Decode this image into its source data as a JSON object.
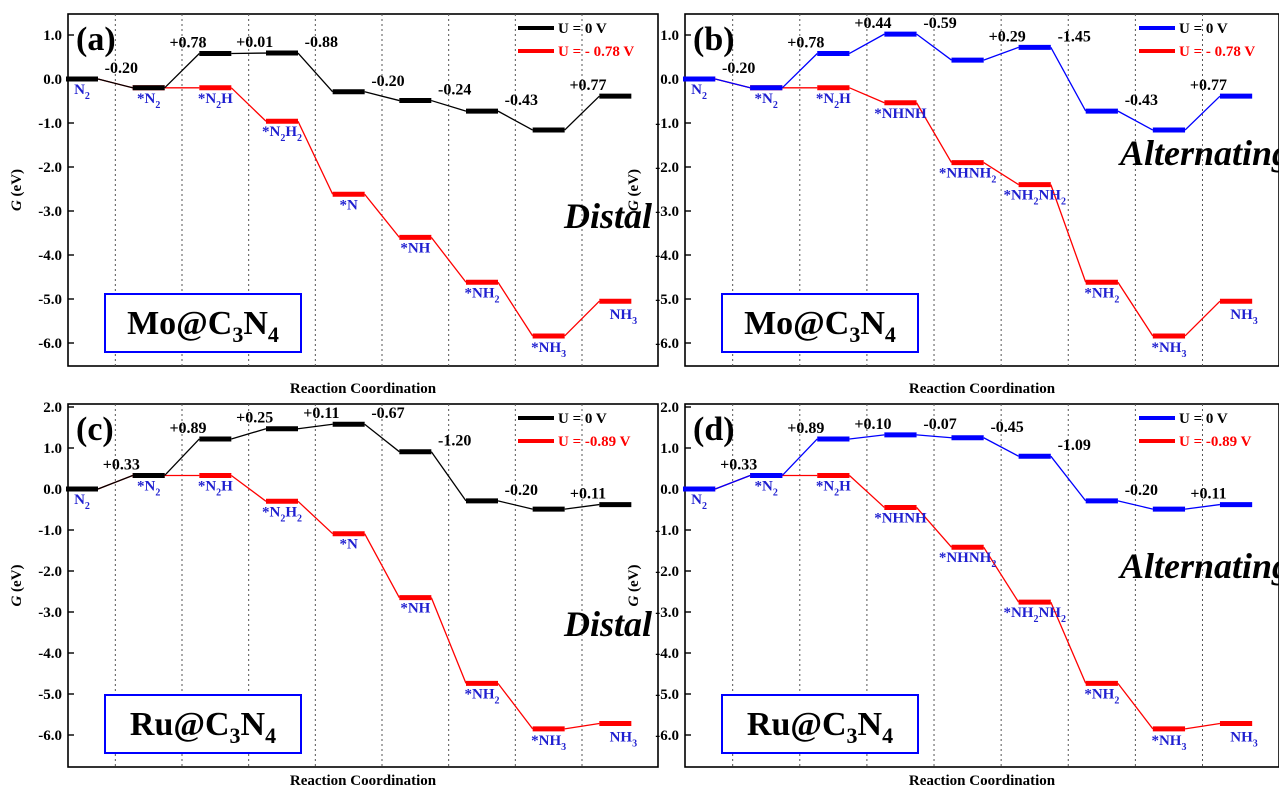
{
  "colors": {
    "black": "#000000",
    "red": "#ff0000",
    "blue": "#0000ff",
    "label": "#1f1fd0",
    "grid": "#555555"
  },
  "chart_data": [
    {
      "type": "line",
      "panel_label": "(a)",
      "catalyst": {
        "prefix": "Mo@C",
        "sub1": "3",
        "mid": "N",
        "sub2": "4"
      },
      "mechanism": "Distal",
      "xlabel": "Reaction Coordination",
      "ylabel": "G (eV)",
      "ylim": [
        -6.5,
        1.2
      ],
      "yticks": [
        "1.0",
        "0.0",
        "-1.0",
        "-2.0",
        "-3.0",
        "-4.0",
        "-5.0",
        "-6.0"
      ],
      "grid": "vertical dotted separators",
      "legend_position": "top-right",
      "n_steps": 9,
      "series": [
        {
          "name": "U = 0 V",
          "color": "black",
          "values": [
            0.0,
            -0.2,
            0.58,
            0.59,
            -0.29,
            -0.49,
            -0.73,
            -1.16,
            -0.39
          ]
        },
        {
          "name": "U = - 0.78 V",
          "color": "red",
          "values": [
            0.0,
            -0.2,
            -0.2,
            -0.96,
            -2.62,
            -3.6,
            -4.62,
            -5.84,
            -5.05
          ]
        }
      ],
      "state_labels": [
        {
          "step": 0,
          "main": "N",
          "sub": "2"
        },
        {
          "step": 1,
          "main": "*N",
          "sub": "2"
        },
        {
          "step": 2,
          "main": "*N",
          "sub": "2",
          "tail": "H"
        },
        {
          "step": 3,
          "main": "*N",
          "sub": "2",
          "tail": "H",
          "sub2": "2"
        },
        {
          "step": 4,
          "main": "*N"
        },
        {
          "step": 5,
          "main": "*NH"
        },
        {
          "step": 6,
          "main": "*NH",
          "sub": "2"
        },
        {
          "step": 7,
          "main": "*NH",
          "sub": "3"
        },
        {
          "step": 8,
          "main": "NH",
          "sub": "3"
        }
      ],
      "energy_labels": [
        {
          "step": 1,
          "text": "-0.20"
        },
        {
          "step": 2,
          "text": "+0.78"
        },
        {
          "step": 3,
          "text": "+0.01"
        },
        {
          "step": 4,
          "text": "-0.88"
        },
        {
          "step": 5,
          "text": "-0.20"
        },
        {
          "step": 6,
          "text": "-0.24"
        },
        {
          "step": 7,
          "text": "-0.43"
        },
        {
          "step": 8,
          "text": "+0.77"
        }
      ]
    },
    {
      "type": "line",
      "panel_label": "(b)",
      "catalyst": {
        "prefix": "Mo@C",
        "sub1": "3",
        "mid": "N",
        "sub2": "4"
      },
      "mechanism": "Alternating",
      "xlabel": "Reaction Coordination",
      "ylabel": "G (eV)",
      "ylim": [
        -6.5,
        1.2
      ],
      "yticks": [
        "1.0",
        "0.0",
        "-1.0",
        "-2.0",
        "-3.0",
        "-4.0",
        "-5.0",
        "-6.0"
      ],
      "grid": "vertical dotted separators",
      "legend_position": "top-right",
      "n_steps": 9,
      "series": [
        {
          "name": "U = 0 V",
          "color": "blue",
          "values": [
            0.0,
            -0.2,
            0.58,
            1.02,
            0.43,
            0.72,
            -0.73,
            -1.16,
            -0.39
          ]
        },
        {
          "name": "U = - 0.78 V",
          "color": "red",
          "values": [
            0.0,
            -0.2,
            -0.2,
            -0.54,
            -1.9,
            -2.4,
            -4.62,
            -5.84,
            -5.05
          ]
        }
      ],
      "state_labels": [
        {
          "step": 0,
          "main": "N",
          "sub": "2"
        },
        {
          "step": 1,
          "main": "*N",
          "sub": "2"
        },
        {
          "step": 2,
          "main": "*N",
          "sub": "2",
          "tail": "H"
        },
        {
          "step": 3,
          "main": "*NHNH"
        },
        {
          "step": 4,
          "main": "*NHNH",
          "sub": "2"
        },
        {
          "step": 5,
          "main": "*NH",
          "sub": "2",
          "tail": "NH",
          "sub2": "2"
        },
        {
          "step": 6,
          "main": "*NH",
          "sub": "2"
        },
        {
          "step": 7,
          "main": "*NH",
          "sub": "3"
        },
        {
          "step": 8,
          "main": "NH",
          "sub": "3"
        }
      ],
      "energy_labels": [
        {
          "step": 1,
          "text": "-0.20"
        },
        {
          "step": 2,
          "text": "+0.78"
        },
        {
          "step": 3,
          "text": "+0.44"
        },
        {
          "step": 4,
          "text": "-0.59"
        },
        {
          "step": 5,
          "text": "+0.29"
        },
        {
          "step": 6,
          "text": "-1.45"
        },
        {
          "step": 7,
          "text": "-0.43"
        },
        {
          "step": 8,
          "text": "+0.77"
        }
      ]
    },
    {
      "type": "line",
      "panel_label": "(c)",
      "catalyst": {
        "prefix": "Ru@C",
        "sub1": "3",
        "mid": "N",
        "sub2": "4"
      },
      "mechanism": "Distal",
      "xlabel": "Reaction Coordination",
      "ylabel": "G (eV)",
      "ylim": [
        -6.5,
        2.0
      ],
      "yticks": [
        "2.0",
        "1.0",
        "0.0",
        "-1.0",
        "-2.0",
        "-3.0",
        "-4.0",
        "-5.0",
        "-6.0"
      ],
      "grid": "vertical dotted separators",
      "legend_position": "top-right",
      "n_steps": 9,
      "series": [
        {
          "name": "U = 0 V",
          "color": "black",
          "values": [
            0.0,
            0.33,
            1.22,
            1.47,
            1.58,
            0.91,
            -0.29,
            -0.49,
            -0.38
          ]
        },
        {
          "name": "U = -0.89 V",
          "color": "red",
          "values": [
            0.0,
            0.33,
            0.33,
            -0.3,
            -1.09,
            -2.65,
            -4.74,
            -5.85,
            -5.72
          ]
        }
      ],
      "state_labels": [
        {
          "step": 0,
          "main": "N",
          "sub": "2"
        },
        {
          "step": 1,
          "main": "*N",
          "sub": "2"
        },
        {
          "step": 2,
          "main": "*N",
          "sub": "2",
          "tail": "H"
        },
        {
          "step": 3,
          "main": "*N",
          "sub": "2",
          "tail": "H",
          "sub2": "2"
        },
        {
          "step": 4,
          "main": "*N"
        },
        {
          "step": 5,
          "main": "*NH"
        },
        {
          "step": 6,
          "main": "*NH",
          "sub": "2"
        },
        {
          "step": 7,
          "main": "*NH",
          "sub": "3"
        },
        {
          "step": 8,
          "main": "NH",
          "sub": "3"
        }
      ],
      "energy_labels": [
        {
          "step": 1,
          "text": "+0.33"
        },
        {
          "step": 2,
          "text": "+0.89"
        },
        {
          "step": 3,
          "text": "+0.25"
        },
        {
          "step": 4,
          "text": "+0.11"
        },
        {
          "step": 5,
          "text": "-0.67"
        },
        {
          "step": 6,
          "text": "-1.20"
        },
        {
          "step": 7,
          "text": "-0.20"
        },
        {
          "step": 8,
          "text": "+0.11"
        }
      ]
    },
    {
      "type": "line",
      "panel_label": "(d)",
      "catalyst": {
        "prefix": "Ru@C",
        "sub1": "3",
        "mid": "N",
        "sub2": "4"
      },
      "mechanism": "Alternating",
      "xlabel": "Reaction Coordination",
      "ylabel": "G (eV)",
      "ylim": [
        -6.5,
        2.0
      ],
      "yticks": [
        "2.0",
        "1.0",
        "0.0",
        "-1.0",
        "-2.0",
        "-3.0",
        "-4.0",
        "-5.0",
        "-6.0"
      ],
      "grid": "vertical dotted separators",
      "legend_position": "top-right",
      "n_steps": 9,
      "series": [
        {
          "name": "U = 0 V",
          "color": "blue",
          "values": [
            0.0,
            0.33,
            1.22,
            1.32,
            1.25,
            0.8,
            -0.29,
            -0.49,
            -0.38
          ]
        },
        {
          "name": "U = -0.89 V",
          "color": "red",
          "values": [
            0.0,
            0.33,
            0.33,
            -0.45,
            -1.42,
            -2.76,
            -4.74,
            -5.85,
            -5.72
          ]
        }
      ],
      "state_labels": [
        {
          "step": 0,
          "main": "N",
          "sub": "2"
        },
        {
          "step": 1,
          "main": "*N",
          "sub": "2"
        },
        {
          "step": 2,
          "main": "*N",
          "sub": "2",
          "tail": "H"
        },
        {
          "step": 3,
          "main": "*NHNH"
        },
        {
          "step": 4,
          "main": "*NHNH",
          "sub": "2"
        },
        {
          "step": 5,
          "main": "*NH",
          "sub": "2",
          "tail": "NH",
          "sub2": "2"
        },
        {
          "step": 6,
          "main": "*NH",
          "sub": "2"
        },
        {
          "step": 7,
          "main": "*NH",
          "sub": "3"
        },
        {
          "step": 8,
          "main": "NH",
          "sub": "3"
        }
      ],
      "energy_labels": [
        {
          "step": 1,
          "text": "+0.33"
        },
        {
          "step": 2,
          "text": "+0.89"
        },
        {
          "step": 3,
          "text": "+0.10"
        },
        {
          "step": 4,
          "text": "-0.07"
        },
        {
          "step": 5,
          "text": "-0.45"
        },
        {
          "step": 6,
          "text": "-1.09"
        },
        {
          "step": 7,
          "text": "-0.20"
        },
        {
          "step": 8,
          "text": "+0.11"
        }
      ]
    }
  ]
}
